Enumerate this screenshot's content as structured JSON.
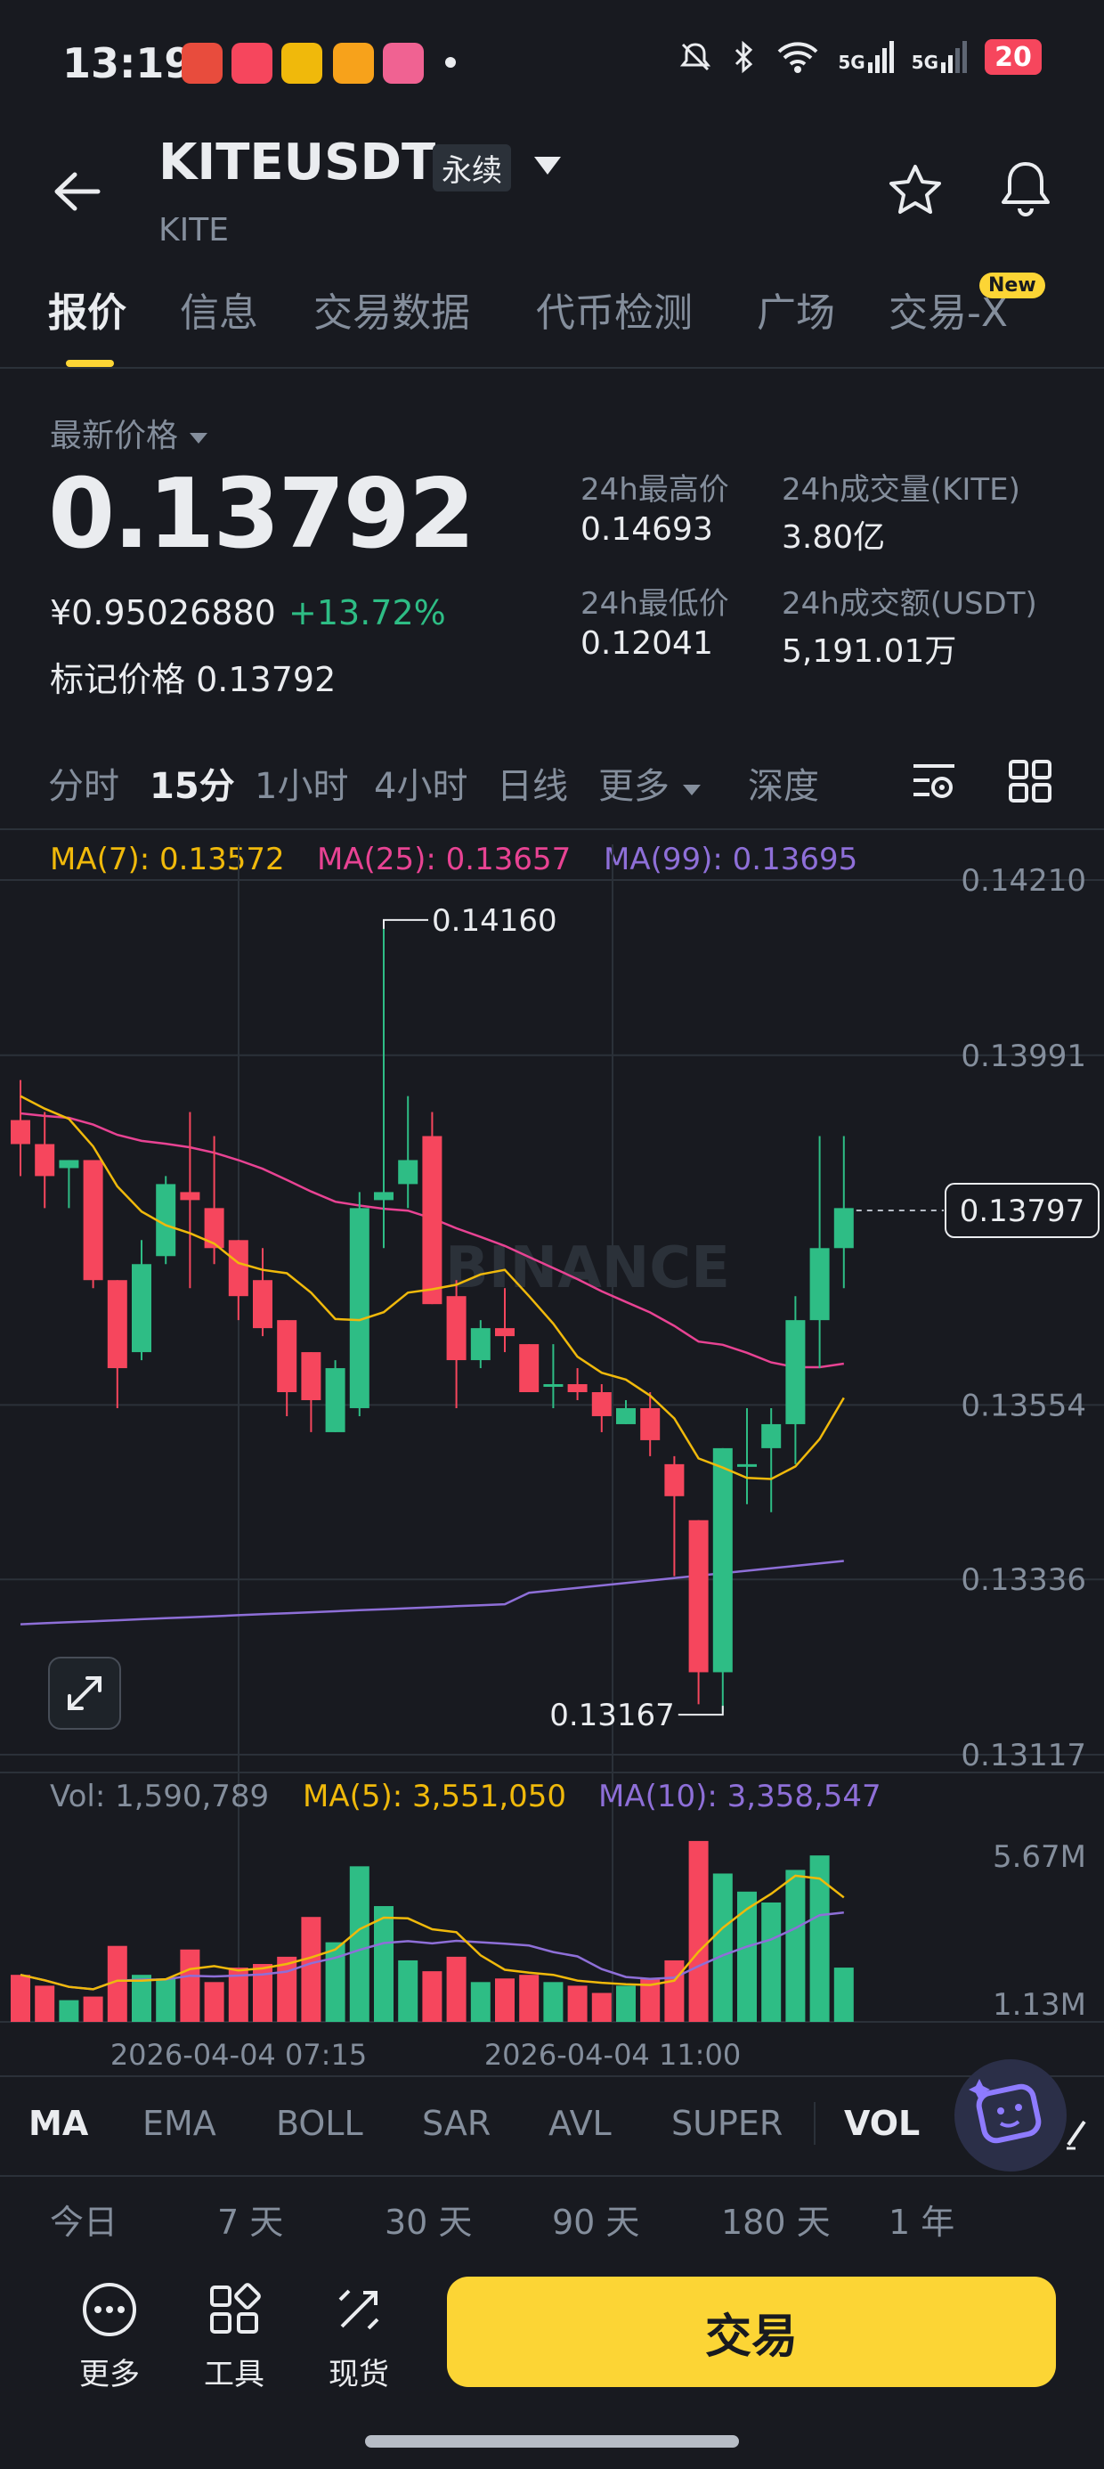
{
  "status_bar": {
    "time": "13:19",
    "battery": "20",
    "network_1": "5G",
    "network_2": "5G",
    "icons": [
      "mute-icon",
      "bluetooth-icon",
      "wifi-icon",
      "signal-5g-icon",
      "signal-5g-icon",
      "battery-icon"
    ]
  },
  "header": {
    "symbol": "KITEUSDT",
    "contract_type": "永续",
    "base": "KITE"
  },
  "tabs": [
    {
      "label": "报价",
      "active": true
    },
    {
      "label": "信息",
      "active": false
    },
    {
      "label": "交易数据",
      "active": false
    },
    {
      "label": "代币检测",
      "active": false
    },
    {
      "label": "广场",
      "active": false
    },
    {
      "label": "交易-X",
      "active": false,
      "badge": "New"
    }
  ],
  "price": {
    "last_label": "最新价格",
    "last": "0.13792",
    "cny": "¥0.95026880",
    "change": "+13.72%",
    "mark_label": "标记价格",
    "mark": "0.13792"
  },
  "stats": {
    "high_label": "24h最高价",
    "high": "0.14693",
    "low_label": "24h最低价",
    "low": "0.12041",
    "vol_label": "24h成交量(KITE)",
    "vol": "3.80亿",
    "turnover_label": "24h成交额(USDT)",
    "turnover": "5,191.01万"
  },
  "intervals": [
    {
      "label": "分时",
      "active": false
    },
    {
      "label": "15分",
      "active": true
    },
    {
      "label": "1小时",
      "active": false
    },
    {
      "label": "4小时",
      "active": false
    },
    {
      "label": "日线",
      "active": false
    },
    {
      "label": "更多",
      "active": false
    },
    {
      "label": "深度",
      "active": false
    }
  ],
  "ma_legend": {
    "ma7": "MA(7): 0.13572",
    "ma25": "MA(25): 0.13657",
    "ma99": "MA(99): 0.13695"
  },
  "colors": {
    "up": "#2EBD85",
    "down": "#F6465D",
    "ma7": "#F0B90B",
    "ma25": "#E84393",
    "ma99": "#8E6FD8",
    "accent": "#FCD535",
    "bg": "#181A20"
  },
  "watermark": "BINANCE",
  "chart_data": {
    "type": "candlestick",
    "price_axis_ticks": [
      "0.14210",
      "0.13991",
      "0.13554",
      "0.13336",
      "0.13117"
    ],
    "ylim": [
      0.13117,
      0.1421
    ],
    "current_price_label": "0.13797",
    "high_marker": "0.14160",
    "low_marker": "0.13167",
    "x_tick_labels": [
      "2026-04-04 07:15",
      "2026-04-04 11:00"
    ],
    "candles": [
      {
        "o": 0.1391,
        "h": 0.1396,
        "l": 0.1384,
        "c": 0.1388
      },
      {
        "o": 0.1388,
        "h": 0.1392,
        "l": 0.138,
        "c": 0.1384
      },
      {
        "o": 0.1385,
        "h": 0.1386,
        "l": 0.138,
        "c": 0.1386
      },
      {
        "o": 0.1386,
        "h": 0.1386,
        "l": 0.137,
        "c": 0.1371
      },
      {
        "o": 0.1371,
        "h": 0.1371,
        "l": 0.1355,
        "c": 0.136
      },
      {
        "o": 0.1362,
        "h": 0.1376,
        "l": 0.1361,
        "c": 0.1373
      },
      {
        "o": 0.1374,
        "h": 0.1384,
        "l": 0.1373,
        "c": 0.1383
      },
      {
        "o": 0.1382,
        "h": 0.1392,
        "l": 0.137,
        "c": 0.1381
      },
      {
        "o": 0.138,
        "h": 0.1389,
        "l": 0.1373,
        "c": 0.1375
      },
      {
        "o": 0.1376,
        "h": 0.1376,
        "l": 0.1366,
        "c": 0.1369
      },
      {
        "o": 0.1371,
        "h": 0.1375,
        "l": 0.1364,
        "c": 0.1365
      },
      {
        "o": 0.1366,
        "h": 0.1366,
        "l": 0.1354,
        "c": 0.1357
      },
      {
        "o": 0.1362,
        "h": 0.1362,
        "l": 0.1352,
        "c": 0.1356
      },
      {
        "o": 0.1352,
        "h": 0.1361,
        "l": 0.1352,
        "c": 0.136
      },
      {
        "o": 0.1355,
        "h": 0.1382,
        "l": 0.1354,
        "c": 0.138
      },
      {
        "o": 0.1381,
        "h": 0.1416,
        "l": 0.1375,
        "c": 0.1382
      },
      {
        "o": 0.1383,
        "h": 0.1394,
        "l": 0.138,
        "c": 0.1386
      },
      {
        "o": 0.1389,
        "h": 0.1392,
        "l": 0.1368,
        "c": 0.1368
      },
      {
        "o": 0.1369,
        "h": 0.1371,
        "l": 0.1355,
        "c": 0.1361
      },
      {
        "o": 0.1361,
        "h": 0.1366,
        "l": 0.136,
        "c": 0.1365
      },
      {
        "o": 0.1365,
        "h": 0.137,
        "l": 0.1362,
        "c": 0.1364
      },
      {
        "o": 0.1363,
        "h": 0.1363,
        "l": 0.1357,
        "c": 0.1357
      },
      {
        "o": 0.1358,
        "h": 0.1363,
        "l": 0.1355,
        "c": 0.1358
      },
      {
        "o": 0.1358,
        "h": 0.136,
        "l": 0.1356,
        "c": 0.1357
      },
      {
        "o": 0.1357,
        "h": 0.1358,
        "l": 0.1352,
        "c": 0.1354
      },
      {
        "o": 0.1353,
        "h": 0.1356,
        "l": 0.1353,
        "c": 0.1355
      },
      {
        "o": 0.1355,
        "h": 0.1357,
        "l": 0.1349,
        "c": 0.1351
      },
      {
        "o": 0.1348,
        "h": 0.1349,
        "l": 0.1334,
        "c": 0.1344
      },
      {
        "o": 0.1341,
        "h": 0.1341,
        "l": 0.1318,
        "c": 0.1322
      },
      {
        "o": 0.1322,
        "h": 0.135,
        "l": 0.1317,
        "c": 0.135
      },
      {
        "o": 0.1348,
        "h": 0.1355,
        "l": 0.1343,
        "c": 0.1348
      },
      {
        "o": 0.135,
        "h": 0.1355,
        "l": 0.1342,
        "c": 0.1353
      },
      {
        "o": 0.1353,
        "h": 0.1369,
        "l": 0.1348,
        "c": 0.1366
      },
      {
        "o": 0.1366,
        "h": 0.1389,
        "l": 0.136,
        "c": 0.1375
      },
      {
        "o": 0.1375,
        "h": 0.1389,
        "l": 0.137,
        "c": 0.138
      }
    ]
  },
  "volume_panel": {
    "vol": "Vol: 1,590,789",
    "ma5": "MA(5): 3,551,050",
    "ma10": "MA(10): 3,358,547",
    "axis_ticks": [
      "5.67M",
      "1.13M"
    ]
  },
  "indicators": [
    {
      "label": "MA",
      "active": true
    },
    {
      "label": "EMA",
      "active": false
    },
    {
      "label": "BOLL",
      "active": false
    },
    {
      "label": "SAR",
      "active": false
    },
    {
      "label": "AVL",
      "active": false
    },
    {
      "label": "SUPER",
      "active": false
    },
    {
      "label": "VOL",
      "active": true
    }
  ],
  "ranges": [
    "今日",
    "7 天",
    "30 天",
    "90 天",
    "180 天",
    "1 年"
  ],
  "bottom_nav": {
    "more": "更多",
    "tools": "工具",
    "spot": "现货",
    "trade": "交易"
  }
}
